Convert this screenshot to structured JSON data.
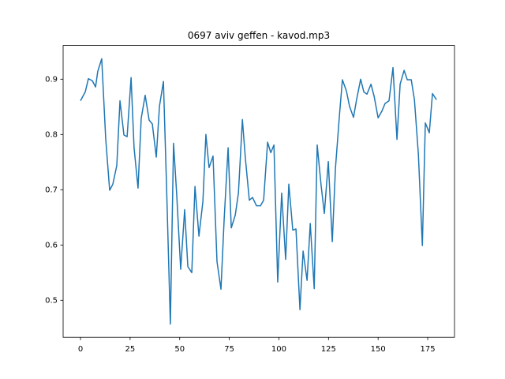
{
  "chart_data": {
    "type": "line",
    "title": "0697 aviv geffen - kavod.mp3",
    "x": [
      0,
      2.4,
      4,
      6,
      7.6,
      8.7,
      10.7,
      12.7,
      14.7,
      16.3,
      18.3,
      19.9,
      21.9,
      23.5,
      25.5,
      27,
      29,
      30.6,
      32.6,
      34.6,
      36.2,
      38.2,
      39.8,
      41.8,
      43.4,
      45.3,
      46.9,
      48.5,
      50.5,
      52.5,
      54.1,
      56.1,
      57.7,
      59.7,
      61.7,
      63.2,
      64.8,
      66.8,
      68.8,
      70.8,
      72.4,
      74.4,
      76,
      78,
      79.6,
      81.6,
      83.1,
      85.1,
      86.7,
      88.7,
      90.7,
      92.3,
      94.3,
      95.9,
      97.5,
      99.4,
      101.4,
      103.4,
      105,
      107,
      108.6,
      110.6,
      112.2,
      114.2,
      115.8,
      117.8,
      119.3,
      121.3,
      122.9,
      124.9,
      126.9,
      128.5,
      130.5,
      132,
      134,
      135.6,
      137.6,
      139.2,
      141.2,
      142.8,
      144.4,
      146.4,
      148,
      150,
      152,
      153.5,
      155.5,
      157.5,
      159.5,
      161.1,
      163.1,
      164.7,
      166.7,
      168.3,
      170.3,
      172.3,
      173.8,
      175.8,
      177.4,
      179.4
    ],
    "series": [
      {
        "color": "#1f77b4",
        "values": [
          0.861,
          0.877,
          0.901,
          0.897,
          0.886,
          0.914,
          0.937,
          0.793,
          0.699,
          0.71,
          0.744,
          0.861,
          0.799,
          0.796,
          0.903,
          0.776,
          0.703,
          0.829,
          0.871,
          0.826,
          0.819,
          0.759,
          0.851,
          0.896,
          0.703,
          0.457,
          0.784,
          0.691,
          0.556,
          0.664,
          0.561,
          0.55,
          0.706,
          0.616,
          0.679,
          0.8,
          0.74,
          0.761,
          0.57,
          0.52,
          0.646,
          0.776,
          0.631,
          0.654,
          0.694,
          0.827,
          0.757,
          0.681,
          0.686,
          0.671,
          0.671,
          0.681,
          0.786,
          0.767,
          0.781,
          0.533,
          0.694,
          0.574,
          0.71,
          0.627,
          0.629,
          0.483,
          0.589,
          0.536,
          0.639,
          0.521,
          0.781,
          0.707,
          0.657,
          0.751,
          0.606,
          0.739,
          0.834,
          0.899,
          0.879,
          0.851,
          0.831,
          0.864,
          0.9,
          0.877,
          0.873,
          0.891,
          0.869,
          0.83,
          0.843,
          0.856,
          0.861,
          0.921,
          0.791,
          0.891,
          0.916,
          0.899,
          0.899,
          0.863,
          0.764,
          0.599,
          0.821,
          0.803,
          0.874,
          0.863
        ]
      }
    ],
    "xlim": [
      -8.75,
      188.5
    ],
    "ylim": [
      0.433,
      0.961
    ],
    "xticks": [
      0,
      25,
      50,
      75,
      100,
      125,
      150,
      175
    ],
    "yticks": [
      0.5,
      0.6,
      0.7,
      0.8,
      0.9
    ]
  }
}
